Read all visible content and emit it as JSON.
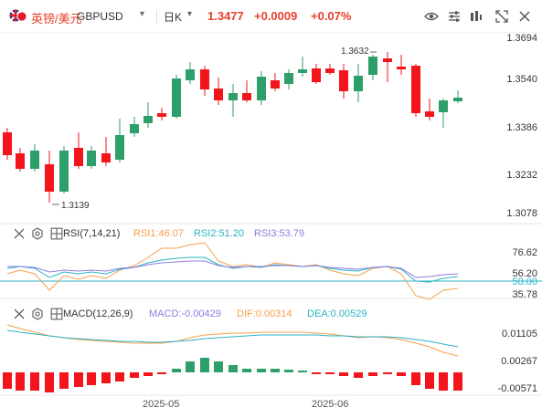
{
  "header": {
    "symbol_cn": "英镑/美元",
    "symbol": "GBPUSD",
    "period": "日K",
    "price": "1.3477",
    "change": "+0.0009",
    "change_pct": "+0.07%"
  },
  "main_axis": [
    "1.3694",
    "1.3540",
    "1.3386",
    "1.3232",
    "1.3078"
  ],
  "annotations": {
    "high": "1.3632",
    "low": "1.3139"
  },
  "rsi": {
    "label": "RSI(7,14,21)",
    "rsi1": "RSI1:46.07",
    "rsi2": "RSI2:51.20",
    "rsi3": "RSI3:53.79",
    "axis": [
      "76.62",
      "56.20",
      "50.00",
      "35.78"
    ]
  },
  "macd": {
    "label": "MACD(12,26,9)",
    "macd": "MACD:-0.00429",
    "dif": "DIF:0.00314",
    "dea": "DEA:0.00529",
    "axis": [
      "0.01105",
      "0.00267",
      "-0.00571"
    ]
  },
  "dates": [
    "2025-05",
    "2025-06"
  ],
  "colors": {
    "up": "#2e9e6b",
    "down": "#f2151c",
    "rsi1": "#f5a04a",
    "rsi2": "#2ab3c6",
    "rsi3": "#8a7de0",
    "accent": "#e8402a"
  },
  "icons": [
    "gbp-flag-icon",
    "chevron-down-icon",
    "eye-icon",
    "sliders-icon",
    "swap-icon",
    "expand-icon",
    "close-icon",
    "settings-icon",
    "indicator-icon"
  ]
}
